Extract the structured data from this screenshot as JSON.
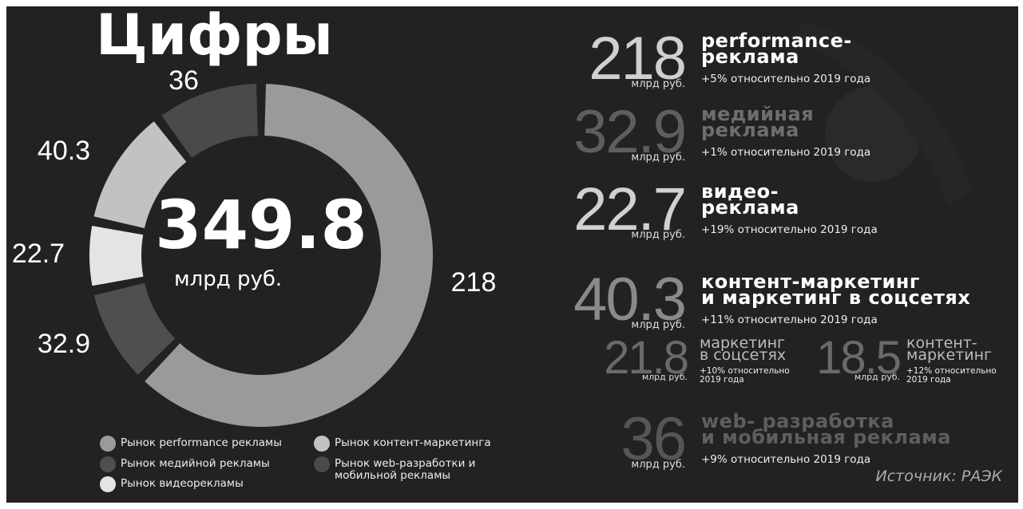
{
  "chart_data": {
    "type": "donut",
    "title": "Цифры",
    "total": 349.8,
    "unit": "млрд руб.",
    "categories": [
      "Рынок performance рекламы",
      "Рынок медийной рекламы",
      "Рынок видеорекламы",
      "Рынок контент-маркетинга",
      "Рынок web-разработки и мобильной рекламы"
    ],
    "values": [
      218,
      32.9,
      22.7,
      40.3,
      36
    ],
    "colors": [
      "#9a9a9a",
      "#4f4f4f",
      "#e4e4e4",
      "#c2c2c2",
      "#4a4a4a"
    ]
  },
  "highlights": [
    {
      "title_lines": [
        "performance-",
        "реклама"
      ],
      "note": "+5% относительно 2019 года"
    },
    {
      "title_lines": [
        "медийная",
        "реклама"
      ],
      "note": "+1% относительно 2019 года"
    },
    {
      "title_lines": [
        "видео-",
        "реклама"
      ],
      "note": "+19% относительно 2019 года"
    },
    {
      "title_lines": [
        "контент-маркетинг",
        "и маркетинг в соцсетях"
      ],
      "note": "+11% относительно 2019 года"
    },
    {
      "title_lines": [
        "web- разработка",
        "и мобильная реклама"
      ],
      "note": "+9% относительно 2019 года"
    }
  ],
  "breakdown": [
    {
      "value": 21.8,
      "title_lines": [
        "маркетинг",
        "в соцсетях"
      ],
      "note": "+10% относительно 2019 года"
    },
    {
      "value": 18.5,
      "title_lines": [
        "контент-",
        "маркетинг"
      ],
      "note": "+12% относительно 2019 года"
    }
  ],
  "source": "Источник: РАЭК"
}
